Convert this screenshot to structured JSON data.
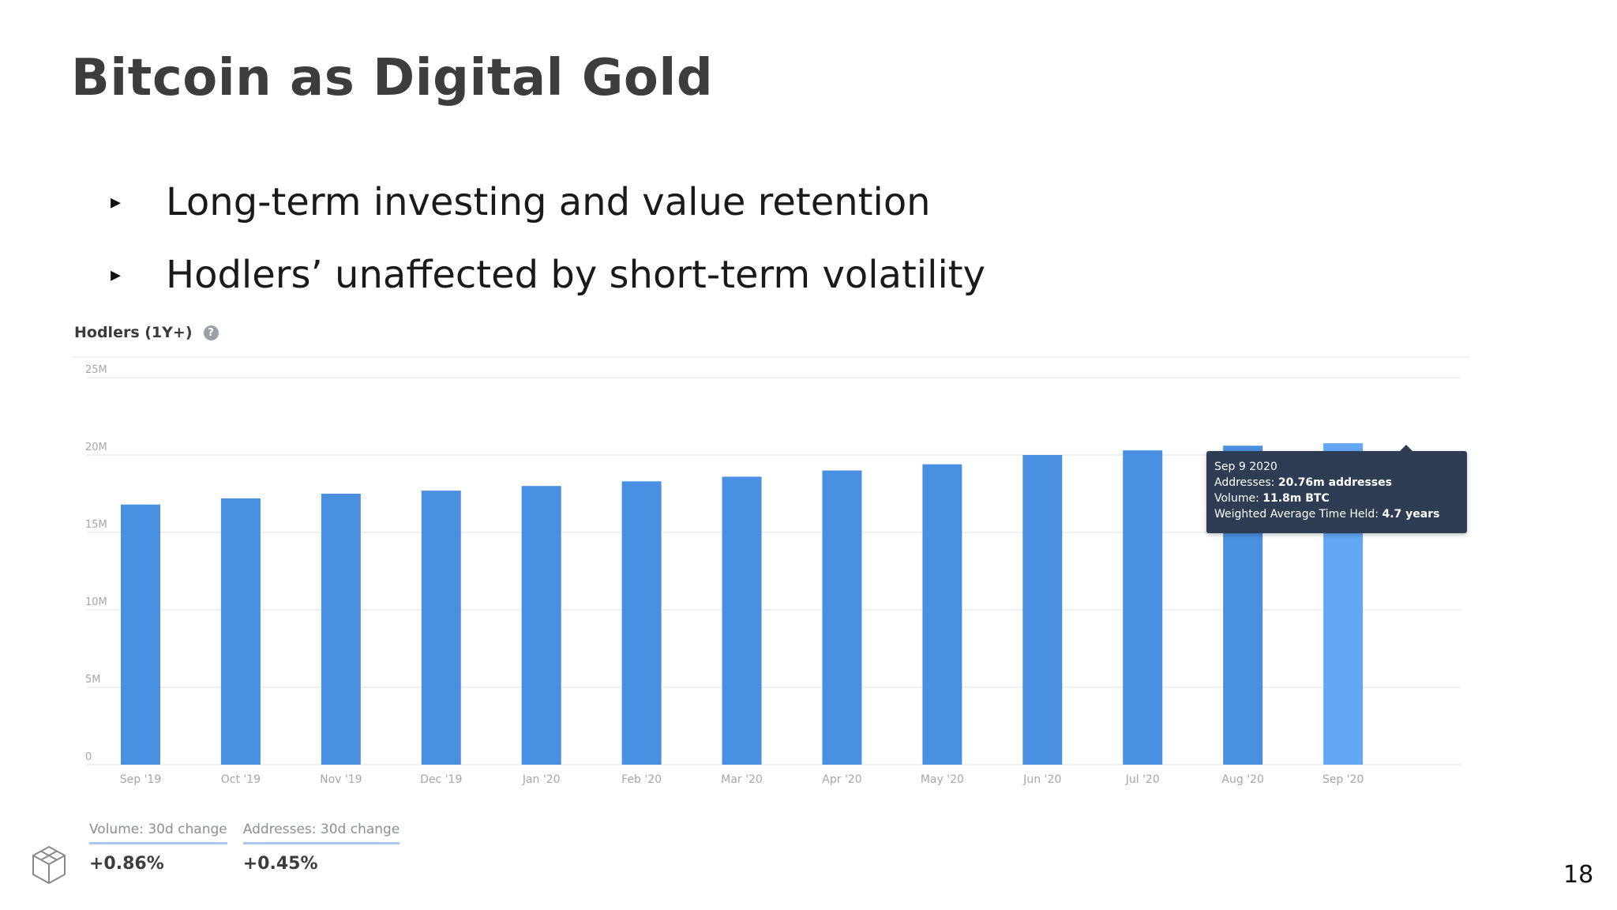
{
  "slide": {
    "title": "Bitcoin as Digital Gold",
    "bullets": [
      "Long-term investing and value retention",
      "Hodlers’ unaffected by short-term volatility"
    ],
    "page_number": "18",
    "logo_icon": "cube-logo-icon"
  },
  "chart_data": {
    "type": "bar",
    "title": "Hodlers (1Y+)",
    "categories": [
      "Sep '19",
      "Oct '19",
      "Nov '19",
      "Dec '19",
      "Jan '20",
      "Feb '20",
      "Mar '20",
      "Apr '20",
      "May '20",
      "Jun '20",
      "Jul '20",
      "Aug '20",
      "Sep '20"
    ],
    "values": [
      16.8,
      17.2,
      17.5,
      17.7,
      18.0,
      18.3,
      18.6,
      19.0,
      19.4,
      20.0,
      20.3,
      20.6,
      20.76
    ],
    "unit": "M",
    "yticks": [
      "0",
      "5M",
      "10M",
      "15M",
      "20M",
      "25M"
    ],
    "ylim": [
      0,
      25
    ],
    "grid": true,
    "highlight_index": 12,
    "colors": {
      "bar": "#4a90e2",
      "highlight": "#64a8f5",
      "grid": "#ececec",
      "tick_label": "#a6a6a6"
    },
    "tooltip": {
      "date": "Sep 9 2020",
      "addresses_label": "Addresses:",
      "addresses_value": "20.76m addresses",
      "volume_label": "Volume:",
      "volume_value": "11.8m BTC",
      "time_held_label": "Weighted Average Time Held:",
      "time_held_value": "4.7 years"
    }
  },
  "stats": [
    {
      "label": "Volume: 30d change",
      "value": "+0.86%"
    },
    {
      "label": "Addresses: 30d change",
      "value": "+0.45%"
    }
  ]
}
